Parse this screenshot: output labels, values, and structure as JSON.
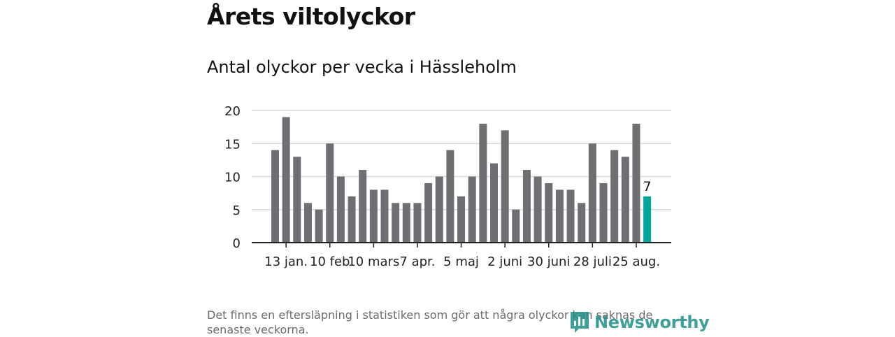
{
  "header": {
    "title": "Årets viltolyckor",
    "subtitle": "Antal olyckor per vecka i Hässleholm"
  },
  "footer": {
    "note": "Det finns en eftersläpning i statistiken som gör att några olyckor kan saknas de senaste veckorna.",
    "brand": "Newsworthy"
  },
  "icons": {
    "logo": "newsworthy-logo-icon"
  },
  "colors": {
    "bar": "#6f6e73",
    "highlight": "#00a69c",
    "grid": "#d9d9d9",
    "axis": "#222222",
    "brand": "#1f8f8a"
  },
  "chart_data": {
    "type": "bar",
    "values": [
      14,
      19,
      13,
      6,
      5,
      15,
      10,
      7,
      11,
      8,
      8,
      6,
      6,
      6,
      9,
      10,
      14,
      7,
      10,
      18,
      12,
      17,
      5,
      11,
      10,
      9,
      8,
      8,
      6,
      15,
      9,
      14,
      13,
      18,
      7
    ],
    "ylim": [
      0,
      20
    ],
    "yticks": [
      0,
      5,
      10,
      15,
      20
    ],
    "xticks": [
      {
        "index": 1,
        "label": "13 jan."
      },
      {
        "index": 5,
        "label": "10 feb"
      },
      {
        "index": 9,
        "label": "10 mars"
      },
      {
        "index": 13,
        "label": "7 apr."
      },
      {
        "index": 17,
        "label": "5 maj"
      },
      {
        "index": 21,
        "label": "2 juni"
      },
      {
        "index": 25,
        "label": "30 juni"
      },
      {
        "index": 29,
        "label": "28 juli"
      },
      {
        "index": 33,
        "label": "25 aug."
      }
    ],
    "highlight_index": 34,
    "highlight_label": "7",
    "grid": true
  }
}
